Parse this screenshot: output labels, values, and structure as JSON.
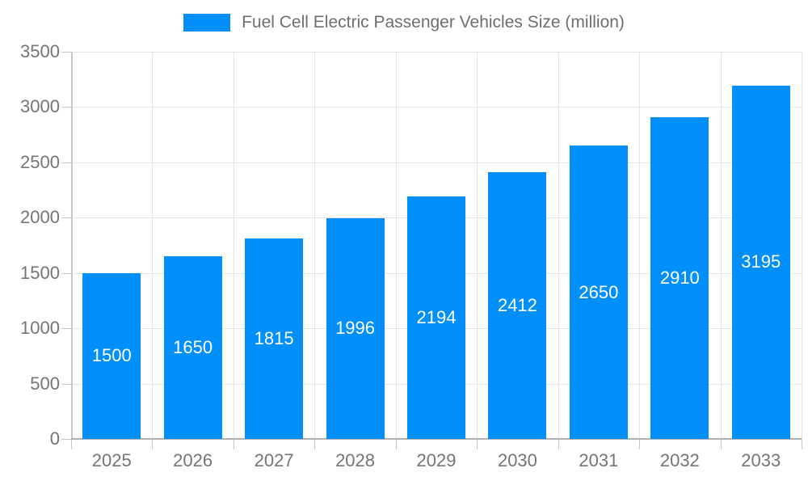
{
  "legend": {
    "swatch_color": "#008FFB"
  },
  "chart_data": {
    "type": "bar",
    "title": "Fuel Cell Electric Passenger Vehicles Size (million)",
    "series_name": "Fuel Cell Electric Passenger Vehicles Size (million)",
    "categories": [
      "2025",
      "2026",
      "2027",
      "2028",
      "2029",
      "2030",
      "2031",
      "2032",
      "2033"
    ],
    "values": [
      1500,
      1650,
      1815,
      1996,
      2194,
      2412,
      2650,
      2910,
      3195
    ],
    "xlabel": "",
    "ylabel": "",
    "ylim": [
      0,
      3500
    ],
    "ytick_step": 500,
    "yticks": [
      0,
      500,
      1000,
      1500,
      2000,
      2500,
      3000,
      3500
    ],
    "bar_color": "#008FFB",
    "value_label_color": "#FFFFFF",
    "value_label_position": "inside-center",
    "axis_text_color": "#757575",
    "grid": true,
    "legend_position": "top-center"
  }
}
